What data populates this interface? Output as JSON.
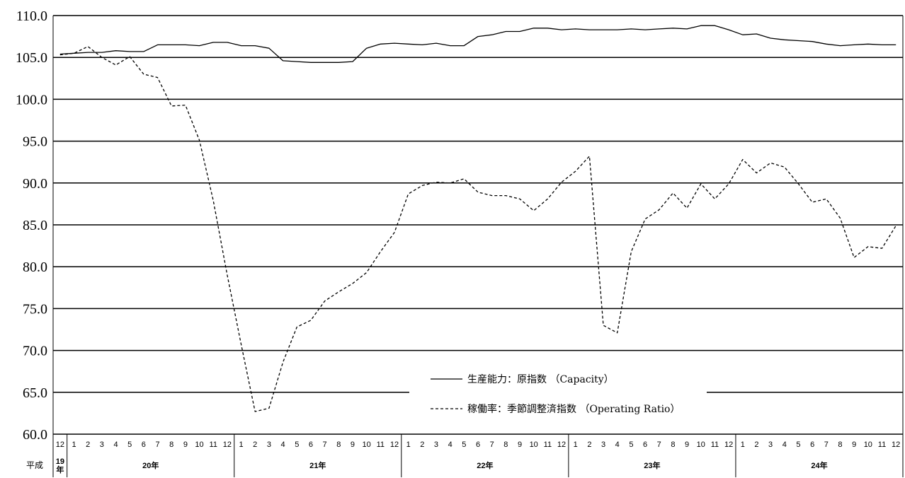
{
  "chart_data": {
    "type": "line",
    "ylim": [
      60,
      110
    ],
    "yticks": [
      "60.0",
      "65.0",
      "70.0",
      "75.0",
      "80.0",
      "85.0",
      "90.0",
      "95.0",
      "100.0",
      "105.0",
      "110.0"
    ],
    "x_month_labels": [
      "12",
      "1",
      "2",
      "3",
      "4",
      "5",
      "6",
      "7",
      "8",
      "9",
      "10",
      "11",
      "12",
      "1",
      "2",
      "3",
      "4",
      "5",
      "6",
      "7",
      "8",
      "9",
      "10",
      "11",
      "12",
      "1",
      "2",
      "3",
      "4",
      "5",
      "6",
      "7",
      "8",
      "9",
      "10",
      "11",
      "12",
      "1",
      "2",
      "3",
      "4",
      "5",
      "6",
      "7",
      "8",
      "9",
      "10",
      "11",
      "12",
      "1",
      "2",
      "3",
      "4",
      "5",
      "6",
      "7",
      "8",
      "9",
      "10",
      "11",
      "12"
    ],
    "era_label": "平成",
    "year_labels": [
      {
        "label": "19\n年",
        "start": 0,
        "end": 0
      },
      {
        "label": "20年",
        "start": 1,
        "end": 12
      },
      {
        "label": "21年",
        "start": 13,
        "end": 24
      },
      {
        "label": "22年",
        "start": 25,
        "end": 36
      },
      {
        "label": "23年",
        "start": 37,
        "end": 48
      },
      {
        "label": "24年",
        "start": 49,
        "end": 60
      }
    ],
    "series": [
      {
        "name": "生産能力：原指数 （Capacity）",
        "style": "solid",
        "values": [
          105.4,
          105.5,
          105.6,
          105.6,
          105.8,
          105.7,
          105.7,
          106.5,
          106.5,
          106.5,
          106.4,
          106.8,
          106.8,
          106.4,
          106.4,
          106.1,
          104.6,
          104.5,
          104.4,
          104.4,
          104.4,
          104.5,
          106.1,
          106.6,
          106.7,
          106.6,
          106.5,
          106.7,
          106.4,
          106.4,
          107.5,
          107.7,
          108.1,
          108.1,
          108.5,
          108.5,
          108.3,
          108.4,
          108.3,
          108.3,
          108.3,
          108.4,
          108.3,
          108.4,
          108.5,
          108.4,
          108.8,
          108.8,
          108.3,
          107.7,
          107.8,
          107.3,
          107.1,
          107.0,
          106.9,
          106.6,
          106.4,
          106.5,
          106.6,
          106.5,
          106.5
        ]
      },
      {
        "name": "稼働率：季節調整済指数 （Operating Ratio）",
        "style": "dashed",
        "values": [
          105.3,
          105.5,
          106.3,
          105.0,
          104.1,
          105.1,
          103.0,
          102.6,
          99.2,
          99.3,
          95.1,
          87.9,
          79.0,
          70.7,
          62.7,
          63.1,
          68.6,
          72.8,
          73.6,
          75.9,
          77.0,
          78.0,
          79.3,
          81.8,
          84.1,
          88.7,
          89.7,
          90.1,
          90.0,
          90.5,
          88.9,
          88.5,
          88.5,
          88.1,
          86.7,
          88.1,
          90.1,
          91.4,
          93.2,
          73.0,
          72.1,
          81.8,
          85.7,
          86.8,
          88.8,
          87.0,
          89.9,
          88.1,
          89.9,
          92.8,
          91.2,
          92.4,
          91.9,
          89.9,
          87.7,
          88.1,
          85.8,
          81.1,
          82.4,
          82.2,
          84.9
        ]
      }
    ],
    "legend_placement": "bottom-center",
    "grid": true
  }
}
